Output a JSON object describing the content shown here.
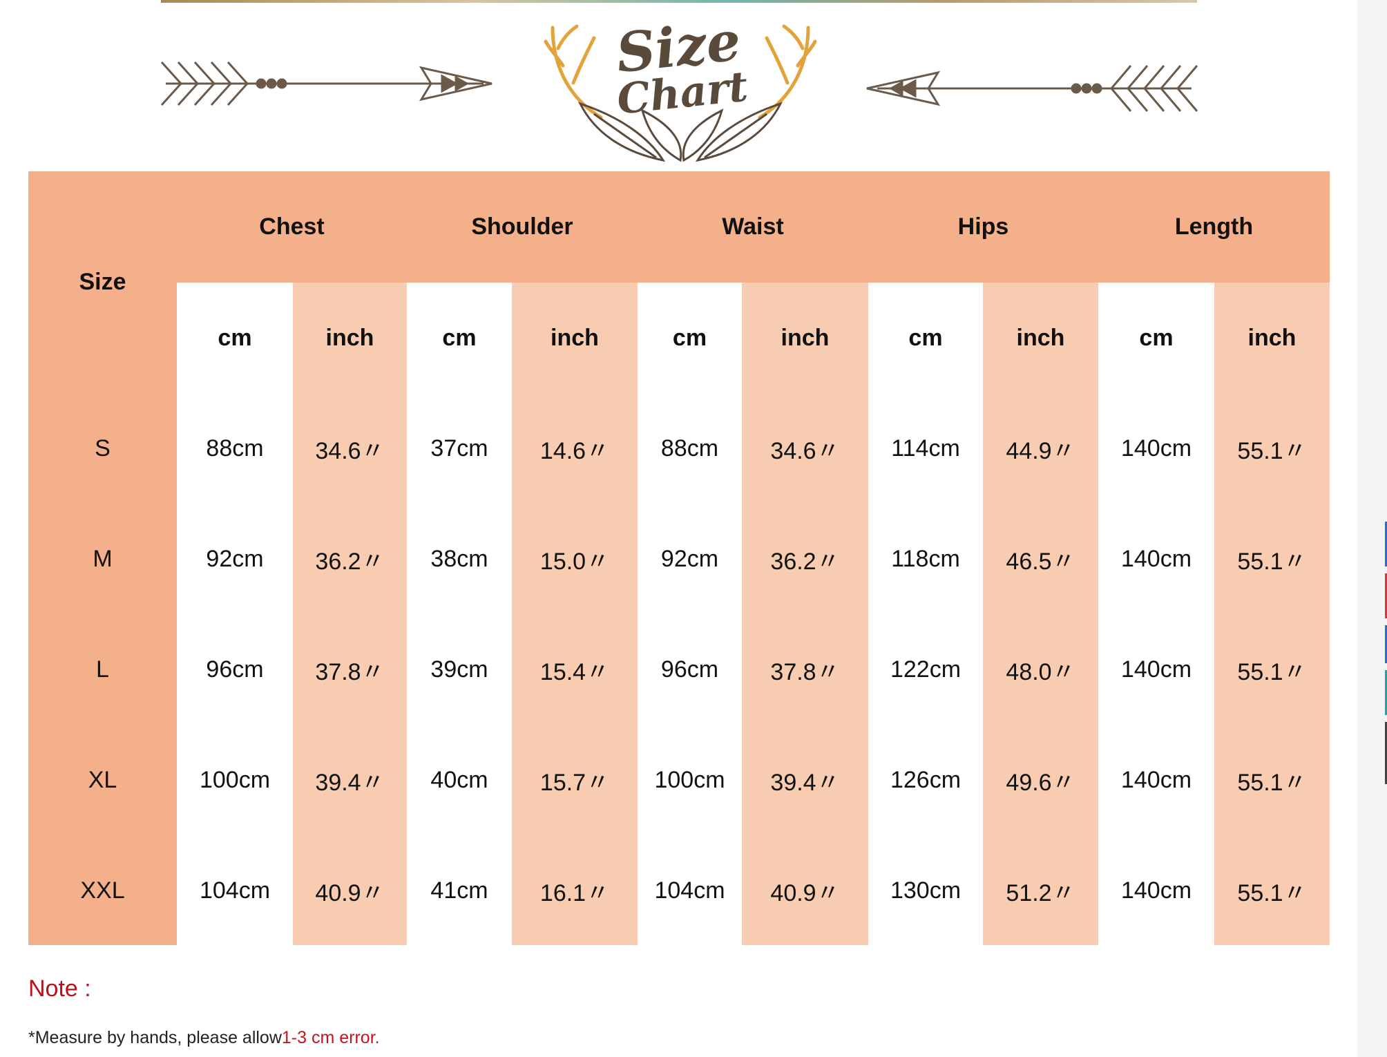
{
  "header": {
    "logo_line1": "Size",
    "logo_line2": "Chart"
  },
  "table": {
    "size_header": "Size",
    "groups": [
      "Chest",
      "Shoulder",
      "Waist",
      "Hips",
      "Length"
    ],
    "subheaders": [
      "cm",
      "inch",
      "cm",
      "inch",
      "cm",
      "inch",
      "cm",
      "inch",
      "cm",
      "inch"
    ],
    "rows": [
      {
        "size": "S",
        "values": [
          "88cm",
          "34.6〃",
          "37cm",
          "14.6〃",
          "88cm",
          "34.6〃",
          "114cm",
          "44.9〃",
          "140cm",
          "55.1〃"
        ]
      },
      {
        "size": "M",
        "values": [
          "92cm",
          "36.2〃",
          "38cm",
          "15.0〃",
          "92cm",
          "36.2〃",
          "118cm",
          "46.5〃",
          "140cm",
          "55.1〃"
        ]
      },
      {
        "size": "L",
        "values": [
          "96cm",
          "37.8〃",
          "39cm",
          "15.4〃",
          "96cm",
          "37.8〃",
          "122cm",
          "48.0〃",
          "140cm",
          "55.1〃"
        ]
      },
      {
        "size": "XL",
        "values": [
          "100cm",
          "39.4〃",
          "40cm",
          "15.7〃",
          "100cm",
          "39.4〃",
          "126cm",
          "49.6〃",
          "140cm",
          "55.1〃"
        ]
      },
      {
        "size": "XXL",
        "values": [
          "104cm",
          "40.9〃",
          "41cm",
          "16.1〃",
          "104cm",
          "40.9〃",
          "130cm",
          "51.2〃",
          "140cm",
          "55.1〃"
        ]
      }
    ]
  },
  "note": {
    "label": "Note :",
    "text_main": "*Measure by hands, please allow",
    "text_highlight": "1-3 cm error."
  },
  "colors": {
    "header_orange": "#f4b08a",
    "inch_peach": "#f7ccb0",
    "cm_white": "#ffffff",
    "note_red": "#b5121b",
    "arrow_brown": "#6b5a4a",
    "antler_gold": "#e2a33a"
  }
}
